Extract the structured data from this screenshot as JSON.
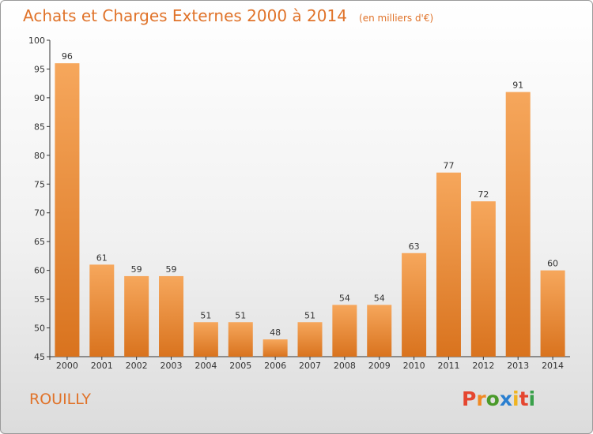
{
  "header": {
    "title": "Achats et Charges Externes 2000 à 2014",
    "unit": "(en milliers d'€)"
  },
  "footer": {
    "place": "ROUILLY",
    "logo": "Proxiti"
  },
  "colors": {
    "accent": "#e0732a",
    "bar_light": "#f6a75c",
    "bar_dark": "#d9731e",
    "logo_letters": [
      "#e5462f",
      "#f08a24",
      "#4a9a2a",
      "#2a7fd0",
      "#f0b421",
      "#e5462f",
      "#39a04a"
    ]
  },
  "chart_data": {
    "type": "bar",
    "title": "Achats et Charges Externes 2000 à 2014",
    "subtitle": "(en milliers d'€)",
    "xlabel": "",
    "ylabel": "",
    "categories": [
      "2000",
      "2001",
      "2002",
      "2003",
      "2004",
      "2005",
      "2006",
      "2007",
      "2008",
      "2009",
      "2010",
      "2011",
      "2012",
      "2013",
      "2014"
    ],
    "values": [
      96,
      61,
      59,
      59,
      51,
      51,
      48,
      51,
      54,
      54,
      63,
      77,
      72,
      91,
      60
    ],
    "ylim": [
      45,
      100
    ],
    "yticks": [
      45,
      50,
      55,
      60,
      65,
      70,
      75,
      80,
      85,
      90,
      95,
      100
    ],
    "grid": false,
    "legend": "none"
  }
}
